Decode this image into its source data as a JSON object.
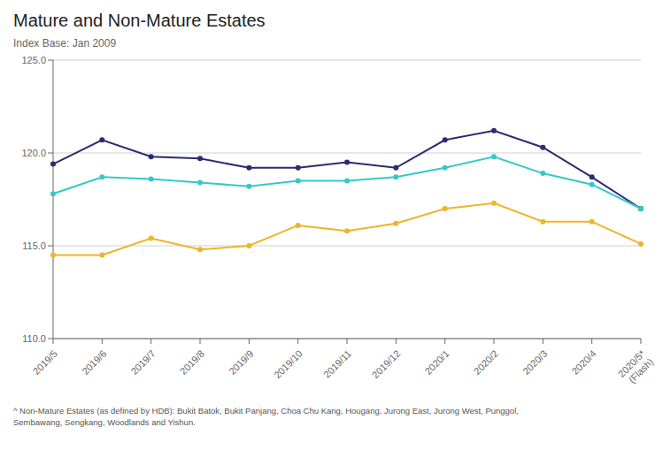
{
  "chart_data": {
    "type": "line",
    "title": "Mature and Non-Mature Estates",
    "subtitle": "Index Base: Jan 2009",
    "categories": [
      "2019/5",
      "2019/6",
      "2019/7",
      "2019/8",
      "2019/9",
      "2019/10",
      "2019/11",
      "2019/12",
      "2020/1",
      "2020/2",
      "2020/3",
      "2020/4",
      "2020/5*\n(Flash)"
    ],
    "series": [
      {
        "color": "#2d2a6e",
        "marker": "circle",
        "values": [
          119.4,
          120.7,
          119.8,
          119.7,
          119.2,
          119.2,
          119.5,
          119.2,
          120.7,
          121.2,
          120.3,
          118.7,
          117.0
        ]
      },
      {
        "color": "#36c8c8",
        "marker": "circle",
        "values": [
          117.8,
          118.7,
          118.6,
          118.4,
          118.2,
          118.5,
          118.5,
          118.7,
          119.2,
          119.8,
          118.9,
          118.3,
          117.0
        ]
      },
      {
        "color": "#f0b429",
        "marker": "circle",
        "values": [
          114.5,
          114.5,
          115.4,
          114.8,
          115.0,
          116.1,
          115.8,
          116.2,
          117.0,
          117.3,
          116.3,
          116.3,
          115.1
        ]
      }
    ],
    "ylim": [
      110.0,
      125.0
    ],
    "yticks": [
      {
        "value": 110.0,
        "label": "110.0"
      },
      {
        "value": 115.0,
        "label": "115.0"
      },
      {
        "value": 120.0,
        "label": "120.0"
      },
      {
        "value": 125.0,
        "label": "125.0"
      }
    ],
    "grid": true,
    "annotations": [
      "^ Non-Mature Estates (as defined by HDB): Bukit Batok, Bukit Panjang, Choa Chu Kang, Hougang, Jurong East, Jurong West, Punggol,",
      "Sembawang, Sengkang, Woodlands and Yishun."
    ]
  }
}
